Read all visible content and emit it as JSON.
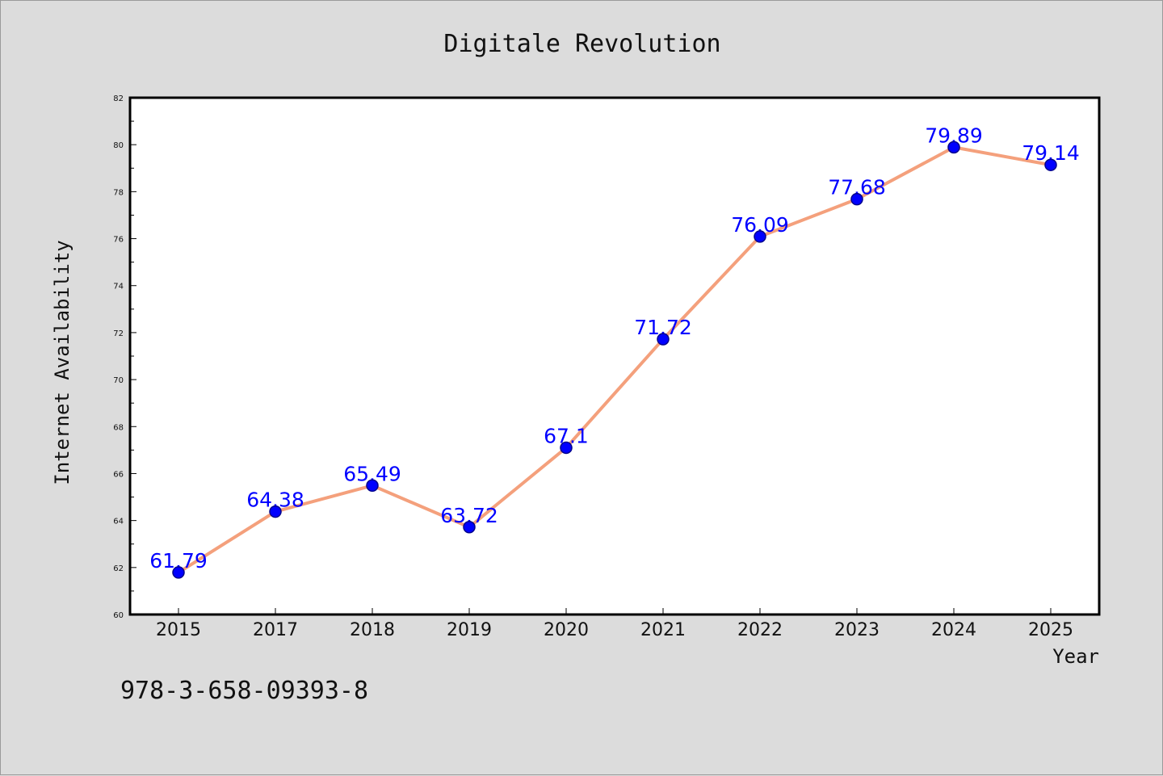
{
  "chart_data": {
    "type": "line",
    "title": "Digitale Revolution",
    "xlabel": "Year",
    "ylabel": "Internet Availability",
    "categories": [
      "2015",
      "2017",
      "2018",
      "2019",
      "2020",
      "2021",
      "2022",
      "2023",
      "2024",
      "2025"
    ],
    "series": [
      {
        "values": [
          61.79,
          64.38,
          65.49,
          63.72,
          67.1,
          71.72,
          76.09,
          77.68,
          79.89,
          79.14
        ],
        "data_labels": [
          "61.79",
          "64.38",
          "65.49",
          "63.72",
          "67.1",
          "71.72",
          "76.09",
          "77.68",
          "79.89",
          "79.14"
        ]
      }
    ],
    "ylim": [
      60,
      82
    ],
    "yticks": [
      60,
      62,
      64,
      66,
      68,
      70,
      72,
      74,
      76,
      78,
      80,
      82
    ],
    "grid": false,
    "legend": "none",
    "colors": {
      "line": "#f4a07c",
      "marker": "#0000ff",
      "marker_edge": "#00008b",
      "data_label": "#0000ff",
      "plot_background": "#ffffff",
      "figure_background": "#dcdcdc"
    }
  },
  "footnote": "978-3-658-09393-8"
}
